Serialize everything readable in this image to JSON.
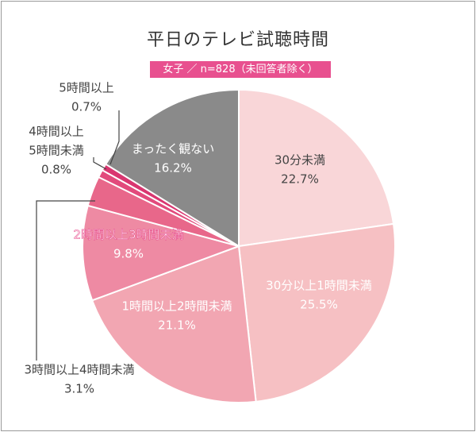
{
  "chart_data": {
    "type": "pie",
    "title": "平日のテレビ試聴時間",
    "subtitle": "女子 ／ n=828（未回答者除く）",
    "slices": [
      {
        "label": "30分未満",
        "value": 22.7,
        "value_label": "22.7%",
        "color": "#f9d6d8"
      },
      {
        "label": "30分以上1時間未満",
        "value": 25.5,
        "value_label": "25.5%",
        "color": "#f6c0c3"
      },
      {
        "label": "1時間以上2時間未満",
        "value": 21.1,
        "value_label": "21.1%",
        "color": "#f2a6b2"
      },
      {
        "label": "2時間以上3時間未満",
        "value": 9.8,
        "value_label": "9.8%",
        "color": "#ee8aa3"
      },
      {
        "label": "3時間以上4時間未満",
        "value": 3.1,
        "value_label": "3.1%",
        "color": "#e8678a"
      },
      {
        "label": "4時間以上5時間未満",
        "value": 0.8,
        "value_label": "0.8%",
        "color": "#e24a7c"
      },
      {
        "label": "5時間以上",
        "value": 0.7,
        "value_label": "0.7%",
        "color": "#d93670"
      },
      {
        "label": "まったく観ない",
        "value": 16.2,
        "value_label": "16.2%",
        "color": "#8a8a8a"
      }
    ]
  }
}
